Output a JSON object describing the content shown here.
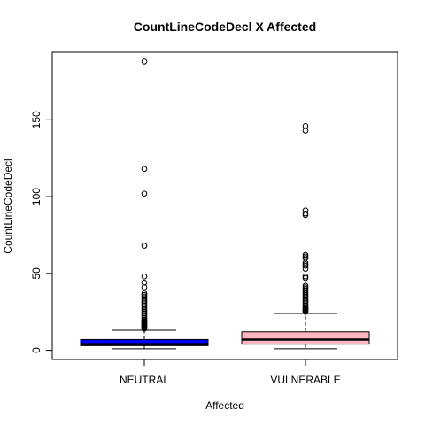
{
  "chart_data": {
    "type": "boxplot",
    "title": "CountLineCodeDecl X Affected",
    "xlabel": "Affected",
    "ylabel": "CountLineCodeDecl",
    "ylim": [
      -6,
      194
    ],
    "yticks": [
      0,
      50,
      100,
      150
    ],
    "categories": [
      "NEUTRAL",
      "VULNERABLE"
    ],
    "boxes": [
      {
        "name": "NEUTRAL",
        "color": "#0000FF",
        "whisker_low": 1,
        "q1": 3,
        "median": 4,
        "q3": 7,
        "whisker_high": 13,
        "outliers": [
          188,
          118,
          102,
          68,
          48,
          44,
          41,
          37,
          36,
          35,
          34,
          33,
          32,
          31,
          30,
          29,
          28,
          27,
          26,
          25,
          24,
          23,
          22,
          21,
          20,
          19.5,
          19,
          18.5,
          18,
          17.5,
          17,
          16.5,
          16,
          15.5,
          15,
          14.5,
          14
        ]
      },
      {
        "name": "VULNERABLE",
        "color": "#FFB6C1",
        "whisker_low": 1,
        "q1": 4,
        "median": 7,
        "q3": 12,
        "whisker_high": 24,
        "outliers": [
          146,
          143,
          91,
          89,
          88,
          62,
          61,
          60,
          57,
          56,
          55,
          53,
          48,
          47,
          42,
          41,
          40,
          39,
          38,
          37,
          36,
          35,
          34,
          33,
          32,
          31,
          30,
          29,
          28,
          27.5,
          27,
          26.5,
          26,
          25.5,
          25
        ]
      }
    ]
  }
}
